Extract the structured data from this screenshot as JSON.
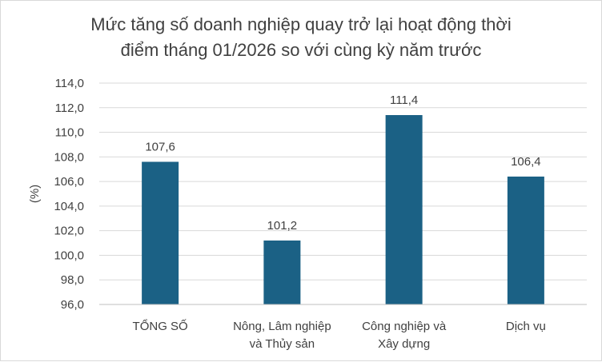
{
  "chart_data": {
    "type": "bar",
    "title_lines": [
      "Mức tăng số doanh nghiệp quay trở lại hoạt động thời",
      "điểm tháng 01/2026 so với cùng kỳ năm trước"
    ],
    "ylabel": "(%)",
    "ylim": [
      96.0,
      114.0
    ],
    "ytick_step": 2.0,
    "ytick_labels": [
      "96,0",
      "98,0",
      "100,0",
      "102,0",
      "104,0",
      "106,0",
      "108,0",
      "110,0",
      "112,0",
      "114,0"
    ],
    "grid": true,
    "categories": [
      [
        "TỔNG SỐ"
      ],
      [
        "Nông, Lâm nghiệp",
        "và Thủy sản"
      ],
      [
        "Công nghiệp và",
        "Xây dựng"
      ],
      [
        "Dịch vụ"
      ]
    ],
    "values": [
      107.6,
      101.2,
      111.4,
      106.4
    ],
    "value_labels": [
      "107,6",
      "101,2",
      "111,4",
      "106,4"
    ],
    "bar_color": "#1b6185",
    "text_color": "#404040",
    "grid_color": "#d9d9d9"
  }
}
